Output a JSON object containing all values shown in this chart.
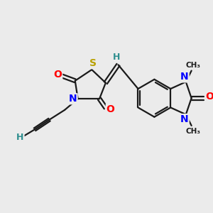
{
  "bg_color": "#ebebeb",
  "atom_colors": {
    "S": "#b8a000",
    "N": "#0000ff",
    "O": "#ff0000",
    "C": "#1a1a1a",
    "H": "#2f8f8f"
  },
  "bond_color": "#1a1a1a",
  "bond_lw": 1.6,
  "figsize": [
    3.0,
    3.0
  ],
  "dpi": 100
}
